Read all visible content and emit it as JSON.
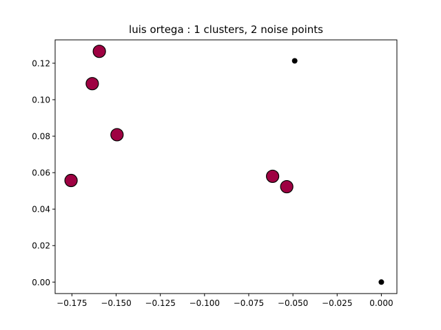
{
  "chart_data": {
    "type": "scatter",
    "title": "luis ortega : 1 clusters, 2 noise points",
    "xlabel": "",
    "ylabel": "",
    "xlim": [
      -0.1845,
      0.0088
    ],
    "ylim": [
      -0.0063,
      0.1328
    ],
    "xticks": [
      -0.175,
      -0.15,
      -0.125,
      -0.1,
      -0.075,
      -0.05,
      -0.025,
      0.0
    ],
    "xtick_labels": [
      "−0.175",
      "−0.150",
      "−0.125",
      "−0.100",
      "−0.075",
      "−0.050",
      "−0.025",
      "0.000"
    ],
    "yticks": [
      0.0,
      0.02,
      0.04,
      0.06,
      0.08,
      0.1,
      0.12
    ],
    "ytick_labels": [
      "0.00",
      "0.02",
      "0.04",
      "0.06",
      "0.08",
      "0.10",
      "0.12"
    ],
    "series": [
      {
        "name": "cluster-0",
        "color": "#9e0142",
        "edge_color": "#000000",
        "marker": "large-circle",
        "points": [
          {
            "x": -0.1595,
            "y": 0.1265
          },
          {
            "x": -0.1635,
            "y": 0.1088
          },
          {
            "x": -0.1495,
            "y": 0.0808
          },
          {
            "x": -0.1755,
            "y": 0.0557
          },
          {
            "x": -0.0615,
            "y": 0.058
          },
          {
            "x": -0.0535,
            "y": 0.0523
          }
        ]
      },
      {
        "name": "noise",
        "color": "#000000",
        "marker": "small-circle",
        "points": [
          {
            "x": -0.049,
            "y": 0.1213
          },
          {
            "x": 0.0,
            "y": 0.0
          }
        ]
      }
    ]
  }
}
